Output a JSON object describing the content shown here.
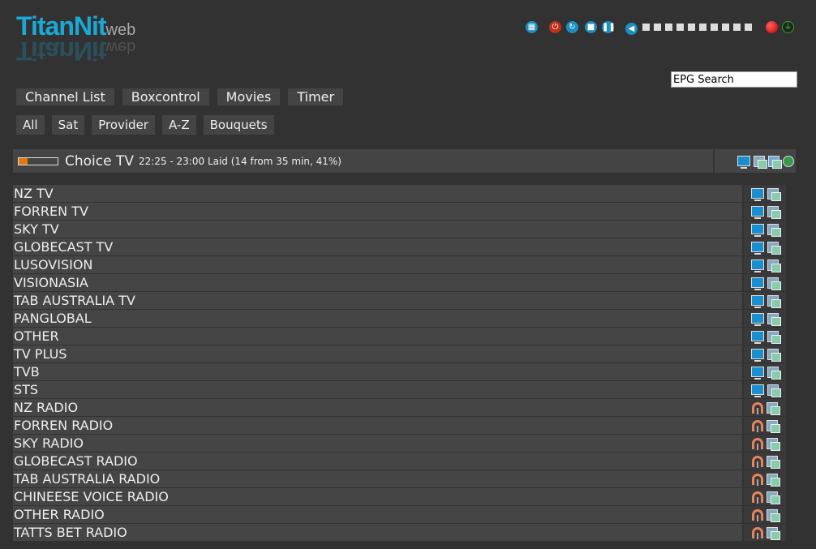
{
  "logo": {
    "main": "TitanNit",
    "sub": "web"
  },
  "controls": [
    "remote-icon",
    "power-icon",
    "restart-icon",
    "stop-icon",
    "pause-icon",
    "volume-icon"
  ],
  "volume_level": 0,
  "volume_steps": 10,
  "status": {
    "record_color": "#e01010"
  },
  "nav": [
    "Channel List",
    "Boxcontrol",
    "Movies",
    "Timer"
  ],
  "filters": [
    "All",
    "Sat",
    "Provider",
    "A-Z",
    "Bouquets"
  ],
  "epg_search": {
    "value": "EPG Search"
  },
  "current": {
    "name": "Choice TV",
    "info": "22:25 - 23:00 Laid (14 from 35 min, 41%)",
    "progress": 41
  },
  "bouquets": [
    {
      "name": "NZ TV",
      "type": "tv"
    },
    {
      "name": "FORREN TV",
      "type": "tv"
    },
    {
      "name": "SKY TV",
      "type": "tv"
    },
    {
      "name": "GLOBECAST TV",
      "type": "tv"
    },
    {
      "name": "LUSOVISION",
      "type": "tv"
    },
    {
      "name": "VISIONASIA",
      "type": "tv"
    },
    {
      "name": "TAB AUSTRALIA TV",
      "type": "tv"
    },
    {
      "name": "PANGLOBAL",
      "type": "tv"
    },
    {
      "name": "OTHER",
      "type": "tv"
    },
    {
      "name": "TV PLUS",
      "type": "tv"
    },
    {
      "name": "TVB",
      "type": "tv"
    },
    {
      "name": "STS",
      "type": "tv"
    },
    {
      "name": "NZ RADIO",
      "type": "radio"
    },
    {
      "name": "FORREN RADIO",
      "type": "radio"
    },
    {
      "name": "SKY RADIO",
      "type": "radio"
    },
    {
      "name": "GLOBECAST RADIO",
      "type": "radio"
    },
    {
      "name": "TAB AUSTRALIA RADIO",
      "type": "radio"
    },
    {
      "name": "CHINEESE VOICE RADIO",
      "type": "radio"
    },
    {
      "name": "OTHER RADIO",
      "type": "radio"
    },
    {
      "name": "TATTS BET RADIO",
      "type": "radio"
    }
  ]
}
